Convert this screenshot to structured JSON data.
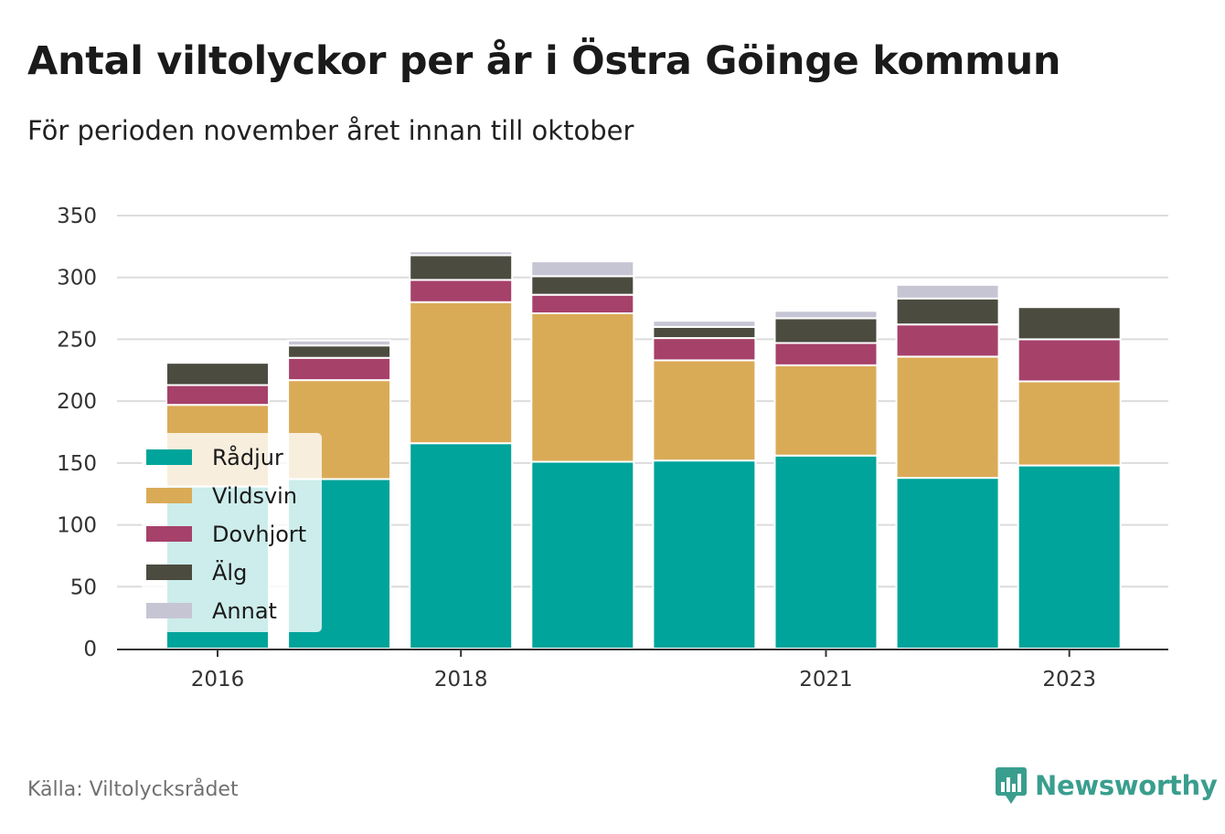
{
  "header": {
    "title": "Antal viltolyckor per år i Östra Göinge kommun",
    "subtitle": "För perioden november året innan till oktober"
  },
  "footer": {
    "source": "Källa: Viltolycksrådet",
    "brand": "Newsworthy"
  },
  "chart_data": {
    "type": "bar",
    "stacked": true,
    "categories": [
      "2016",
      "2017",
      "2018",
      "2019",
      "2020",
      "2021",
      "2022",
      "2023"
    ],
    "x_tick_labels": [
      "2016",
      "2018",
      "2021",
      "2023"
    ],
    "series": [
      {
        "name": "Rådjur",
        "color": "#00a49a",
        "values": [
          131,
          137,
          166,
          151,
          152,
          156,
          138,
          148
        ]
      },
      {
        "name": "Vildsvin",
        "color": "#daab57",
        "values": [
          66,
          80,
          114,
          120,
          81,
          73,
          98,
          68
        ]
      },
      {
        "name": "Dovhjort",
        "color": "#a6416a",
        "values": [
          16,
          18,
          18,
          15,
          18,
          18,
          26,
          34
        ]
      },
      {
        "name": "Älg",
        "color": "#4b4b3f",
        "values": [
          18,
          10,
          20,
          15,
          9,
          20,
          21,
          26
        ]
      },
      {
        "name": "Annat",
        "color": "#c6c5d4",
        "values": [
          0,
          4,
          3,
          12,
          5,
          6,
          11,
          0
        ]
      }
    ],
    "ylim": [
      0,
      350
    ],
    "y_ticks": [
      0,
      50,
      100,
      150,
      200,
      250,
      300,
      350
    ],
    "grid": true,
    "legend_position": "bottom-left"
  }
}
